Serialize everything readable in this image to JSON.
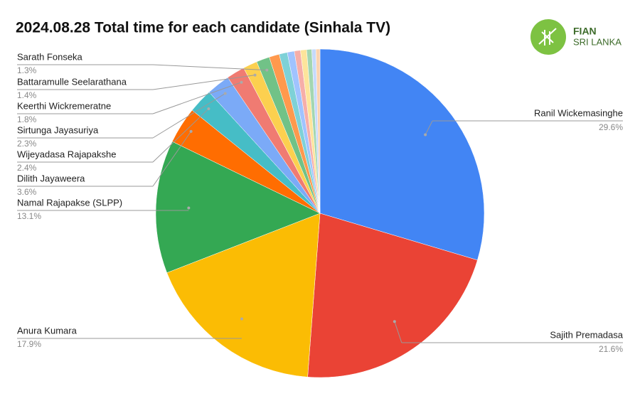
{
  "chart_data": {
    "type": "pie",
    "title": "2024.08.28 Total time for each candidate (Sinhala TV)",
    "categories": [
      "Ranil Wickemasinghe",
      "Sajith Premadasa",
      "Anura Kumara",
      "Namal Rajapakse (SLPP)",
      "Dilith Jayaweera",
      "Wijeyadasa Rajapakshe",
      "Sirtunga Jayasuriya",
      "Keerthi Wickremeratne",
      "Battaramulle Seelarathana",
      "Sarath Fonseka",
      null,
      null,
      null,
      null,
      null,
      null,
      null,
      null
    ],
    "values": [
      29.6,
      21.6,
      17.9,
      13.1,
      3.6,
      2.4,
      2.3,
      1.8,
      1.4,
      1.3,
      1.0,
      0.8,
      0.7,
      0.6,
      0.6,
      0.5,
      0.4,
      0.4
    ],
    "value_labels": [
      "29.6%",
      "21.6%",
      "17.9%",
      "13.1%",
      "3.6%",
      "2.4%",
      "2.3%",
      "1.8%",
      "1.4%",
      "1.3%",
      null,
      null,
      null,
      null,
      null,
      null,
      null,
      null
    ],
    "colors": [
      "#4285f4",
      "#ea4335",
      "#fbbc04",
      "#34a853",
      "#ff6d01",
      "#46bdc6",
      "#7baaf7",
      "#f07b72",
      "#fcd04f",
      "#71c287",
      "#ff994d",
      "#7ed1d7",
      "#a0c3ff",
      "#f6aea9",
      "#fde49b",
      "#a3d6b1",
      "#c6dafc",
      "#fbd3b0"
    ]
  },
  "logo": {
    "name": "FIAN",
    "subtitle": "SRI LANKA"
  }
}
